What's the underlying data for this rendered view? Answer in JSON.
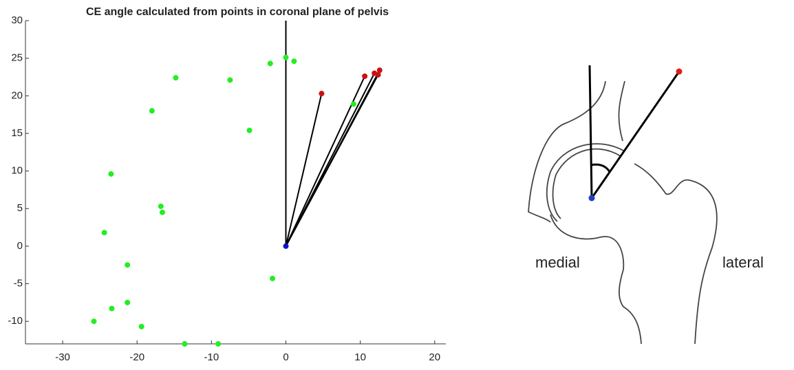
{
  "chart_data": {
    "type": "scatter",
    "title": "CE angle calculated from points in coronal plane of pelvis",
    "xlim": [
      -35,
      21.5
    ],
    "ylim": [
      -13,
      30
    ],
    "xticks": [
      -30,
      -20,
      -10,
      0,
      10,
      20
    ],
    "yticks": [
      -10,
      -5,
      0,
      5,
      10,
      15,
      20,
      25,
      30
    ],
    "series": [
      {
        "color": "#22ee22",
        "x": [
          -14.8,
          -7.5,
          -2.1,
          0,
          1.1,
          -18,
          -4.9,
          9.1,
          -23.5,
          -16.8,
          -16.6,
          -24.4,
          -21.3,
          -1.8,
          -21.3,
          -23.4,
          -25.8,
          -19.4,
          -13.6,
          -9.1
        ],
        "y": [
          22.4,
          22.1,
          24.3,
          25.1,
          24.6,
          18,
          15.4,
          18.9,
          9.6,
          5.3,
          4.5,
          1.8,
          -2.5,
          -4.3,
          -7.5,
          -8.3,
          -10,
          -10.7,
          -13,
          -13
        ]
      },
      {
        "color": "#cc1111",
        "x": [
          4.8,
          10.6,
          11.9,
          12.4,
          12.6
        ],
        "y": [
          20.3,
          22.6,
          23,
          22.8,
          23.4
        ]
      },
      {
        "color": "#1111cc",
        "x": [
          0
        ],
        "y": [
          0
        ]
      }
    ]
  },
  "diagram": {
    "left_label": "medial",
    "right_label": "lateral"
  }
}
